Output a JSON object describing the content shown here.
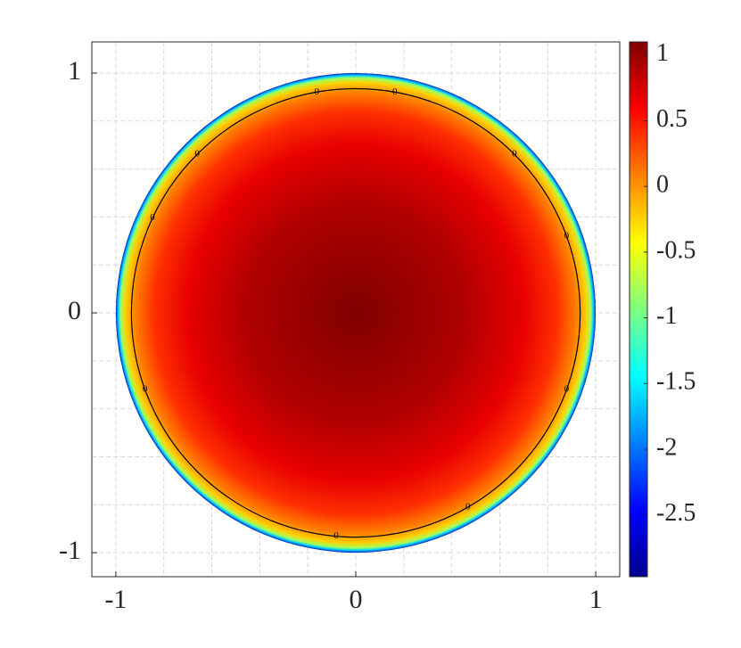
{
  "chart_data": {
    "type": "heatmap",
    "colormap": "jet",
    "xlim": [
      -1.1,
      1.1
    ],
    "ylim": [
      -1.1,
      1.13
    ],
    "xticks": [
      -1,
      0,
      1
    ],
    "yticks": [
      -1,
      0,
      1
    ],
    "xminorticks": [
      -0.8,
      -0.6,
      -0.4,
      -0.2,
      0.2,
      0.4,
      0.6,
      0.8
    ],
    "yminorticks": [
      -0.8,
      -0.6,
      -0.4,
      -0.2,
      0.2,
      0.4,
      0.6,
      0.8,
      1.0
    ],
    "grid": true,
    "domain_radius": 1,
    "contour_level": 0,
    "clim": [
      -2.97,
      1.1
    ],
    "cticks": [
      1,
      0.5,
      0,
      -0.5,
      -1,
      -1.5,
      -2,
      -2.5
    ]
  }
}
